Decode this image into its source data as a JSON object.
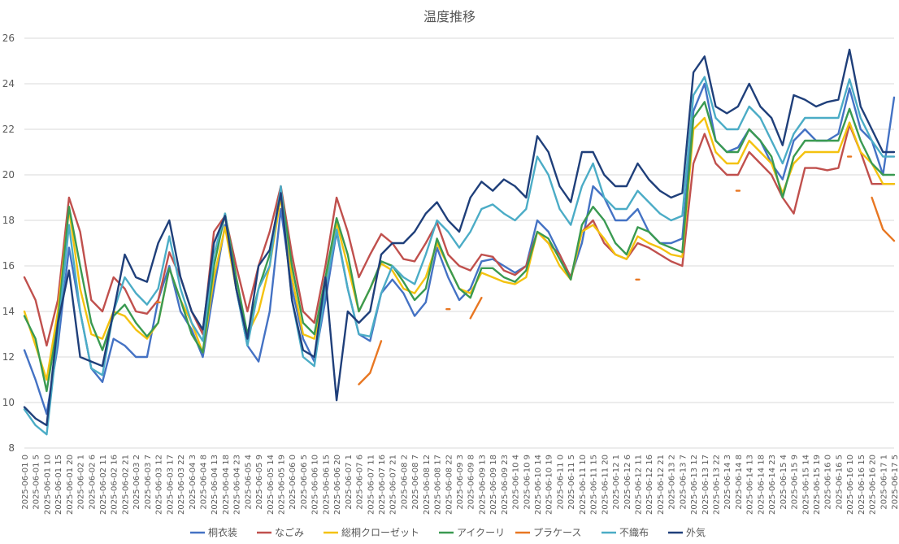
{
  "chart_data": {
    "type": "line",
    "title": "温度推移",
    "xlabel": "",
    "ylabel": "",
    "ylim": [
      8,
      26
    ],
    "yticks": [
      8,
      10,
      12,
      14,
      16,
      18,
      20,
      22,
      24,
      26
    ],
    "grid": true,
    "legend_position": "bottom",
    "x": [
      "2025-06-01 0",
      "2025-06-01 5",
      "2025-06-01 10",
      "2025-06-01 15",
      "2025-06-01 20",
      "2025-06-02 1",
      "2025-06-02 6",
      "2025-06-02 11",
      "2025-06-02 16",
      "2025-06-02 21",
      "2025-06-03 2",
      "2025-06-03 7",
      "2025-06-03 12",
      "2025-06-03 17",
      "2025-06-03 22",
      "2025-06-04 3",
      "2025-06-04 8",
      "2025-06-04 13",
      "2025-06-04 18",
      "2025-06-04 23",
      "2025-06-05 4",
      "2025-06-05 9",
      "2025-06-05 14",
      "2025-06-05 19",
      "2025-06-06 0",
      "2025-06-06 5",
      "2025-06-06 10",
      "2025-06-06 15",
      "2025-06-06 20",
      "2025-06-07 1",
      "2025-06-07 6",
      "2025-06-07 11",
      "2025-06-07 16",
      "2025-06-07 21",
      "2025-06-08 2",
      "2025-06-08 7",
      "2025-06-08 12",
      "2025-06-08 17",
      "2025-06-08 22",
      "2025-06-09 3",
      "2025-06-09 8",
      "2025-06-09 13",
      "2025-06-09 18",
      "2025-06-09 23",
      "2025-06-10 4",
      "2025-06-10 9",
      "2025-06-10 14",
      "2025-06-10 19",
      "2025-06-11 0",
      "2025-06-11 5",
      "2025-06-11 10",
      "2025-06-11 15",
      "2025-06-11 20",
      "2025-06-12 1",
      "2025-06-12 6",
      "2025-06-12 11",
      "2025-06-12 16",
      "2025-06-12 21",
      "2025-06-13 2",
      "2025-06-13 7",
      "2025-06-13 12",
      "2025-06-13 17",
      "2025-06-13 22",
      "2025-06-14 3",
      "2025-06-14 8",
      "2025-06-14 13",
      "2025-06-14 18",
      "2025-06-14 23",
      "2025-06-15 4",
      "2025-06-15 9",
      "2025-06-15 14",
      "2025-06-15 19",
      "2025-06-16 0",
      "2025-06-16 5",
      "2025-06-16 10",
      "2025-06-16 15",
      "2025-06-16 20",
      "2025-06-17 1",
      "2025-06-17 5"
    ],
    "series": [
      {
        "name": "桐衣装",
        "color": "#4472C4",
        "values": [
          12.3,
          11.0,
          9.5,
          12.5,
          16.8,
          14.0,
          11.5,
          10.9,
          12.8,
          12.5,
          12.0,
          12.0,
          14.5,
          16.0,
          14.0,
          13.2,
          12.0,
          15.0,
          17.8,
          15.0,
          12.5,
          11.8,
          14.0,
          18.5,
          15.0,
          12.8,
          11.8,
          14.5,
          17.5,
          15.0,
          13.0,
          12.7,
          14.8,
          15.4,
          14.8,
          13.8,
          14.4,
          16.8,
          15.5,
          14.5,
          15.0,
          16.2,
          16.3,
          16.0,
          15.7,
          16.0,
          18.0,
          17.5,
          16.5,
          15.5,
          17.0,
          19.5,
          19.0,
          18.0,
          18.0,
          18.5,
          17.5,
          17.0,
          17.0,
          17.2,
          22.8,
          24.0,
          21.5,
          21.0,
          21.2,
          22.0,
          21.5,
          20.5,
          19.8,
          21.5,
          22.0,
          21.5,
          21.5,
          21.8,
          23.8,
          22.0,
          21.5,
          20.0,
          23.4
        ]
      },
      {
        "name": "なごみ",
        "color": "#C0504D",
        "values": [
          15.5,
          14.5,
          12.5,
          14.5,
          19.0,
          17.5,
          14.5,
          14.0,
          15.5,
          15.0,
          14.0,
          13.9,
          14.5,
          16.6,
          15.5,
          14.0,
          13.0,
          17.5,
          18.2,
          16.0,
          14.0,
          16.0,
          17.5,
          19.5,
          16.5,
          14.0,
          13.5,
          16.0,
          19.0,
          17.5,
          15.5,
          16.5,
          17.4,
          17.0,
          16.3,
          16.2,
          17.0,
          17.9,
          16.5,
          16.0,
          15.8,
          16.5,
          16.4,
          15.8,
          15.6,
          16.0,
          17.5,
          17.0,
          16.5,
          15.5,
          17.5,
          18.0,
          17.0,
          16.5,
          16.3,
          17.0,
          16.8,
          16.5,
          16.2,
          16.0,
          20.5,
          21.8,
          20.5,
          20.0,
          20.0,
          21.0,
          20.5,
          20.0,
          19.0,
          18.3,
          20.3,
          20.3,
          20.2,
          20.3,
          22.2,
          21.0,
          19.6,
          19.6,
          19.6
        ]
      },
      {
        "name": "総桐クローゼット",
        "color": "#F4C20F",
        "values": [
          14.0,
          12.5,
          11.0,
          14.0,
          18.5,
          15.0,
          13.0,
          12.8,
          14.0,
          13.8,
          13.2,
          12.8,
          13.5,
          15.9,
          14.5,
          13.5,
          12.2,
          15.5,
          17.7,
          15.0,
          13.0,
          14.0,
          16.0,
          19.0,
          15.5,
          13.0,
          12.8,
          15.0,
          17.9,
          16.0,
          14.0,
          15.0,
          16.1,
          15.8,
          15.0,
          14.8,
          15.5,
          17.0,
          16.0,
          15.0,
          14.8,
          15.7,
          15.5,
          15.3,
          15.2,
          15.5,
          17.5,
          17.0,
          16.0,
          15.4,
          17.5,
          17.8,
          17.2,
          16.5,
          16.3,
          17.3,
          17.0,
          16.8,
          16.5,
          16.4,
          22.0,
          22.5,
          21.0,
          20.5,
          20.5,
          21.5,
          21.0,
          20.5,
          19.2,
          20.5,
          21.0,
          21.0,
          21.0,
          21.0,
          22.3,
          21.0,
          20.5,
          19.6,
          19.6
        ]
      },
      {
        "name": "アイクーリ",
        "color": "#3A9A51",
        "values": [
          13.8,
          12.8,
          10.5,
          13.5,
          18.6,
          16.0,
          13.5,
          12.3,
          13.8,
          14.3,
          13.5,
          12.9,
          13.5,
          15.9,
          14.5,
          13.0,
          12.2,
          16.0,
          18.3,
          15.5,
          13.0,
          15.0,
          16.5,
          19.4,
          16.0,
          13.5,
          13.0,
          15.5,
          18.1,
          16.5,
          14.0,
          15.0,
          16.2,
          16.0,
          15.3,
          14.5,
          15.0,
          17.2,
          16.0,
          15.0,
          14.6,
          15.9,
          15.9,
          15.5,
          15.3,
          15.8,
          17.5,
          17.2,
          16.3,
          15.4,
          17.8,
          18.6,
          18.0,
          17.0,
          16.5,
          17.7,
          17.5,
          17.0,
          16.8,
          16.6,
          22.5,
          23.2,
          21.5,
          21.0,
          21.0,
          22.0,
          21.5,
          20.8,
          19.0,
          20.8,
          21.5,
          21.5,
          21.5,
          21.5,
          22.9,
          21.5,
          20.5,
          20.0,
          20.0
        ]
      },
      {
        "name": "プラケース",
        "color": "#E87722",
        "values": [
          null,
          null,
          null,
          null,
          null,
          null,
          null,
          null,
          null,
          null,
          null,
          null,
          14.4,
          null,
          null,
          null,
          null,
          null,
          null,
          null,
          null,
          null,
          null,
          null,
          null,
          null,
          null,
          null,
          null,
          null,
          10.8,
          11.3,
          12.7,
          null,
          null,
          null,
          null,
          null,
          14.1,
          null,
          13.7,
          14.6,
          null,
          null,
          null,
          null,
          null,
          null,
          null,
          null,
          null,
          null,
          null,
          null,
          null,
          15.4,
          null,
          null,
          null,
          null,
          null,
          null,
          null,
          null,
          19.3,
          null,
          null,
          null,
          null,
          null,
          null,
          null,
          null,
          null,
          20.8,
          null,
          19.0,
          17.6,
          17.1
        ]
      },
      {
        "name": "不織布",
        "color": "#4BACC6",
        "values": [
          9.7,
          9.0,
          8.6,
          13.0,
          17.8,
          14.0,
          11.5,
          11.2,
          14.0,
          15.5,
          14.8,
          14.3,
          15.0,
          17.3,
          15.0,
          13.5,
          12.7,
          16.5,
          18.3,
          15.0,
          12.5,
          15.0,
          16.0,
          19.5,
          14.5,
          12.0,
          11.6,
          15.0,
          17.6,
          15.0,
          13.0,
          12.9,
          14.8,
          16.0,
          15.5,
          15.2,
          16.5,
          18.0,
          17.5,
          16.8,
          17.5,
          18.5,
          18.7,
          18.3,
          18.0,
          18.5,
          20.8,
          20.0,
          18.5,
          17.8,
          19.5,
          20.5,
          19.0,
          18.5,
          18.5,
          19.3,
          18.8,
          18.3,
          18.0,
          18.2,
          23.5,
          24.3,
          22.5,
          22.0,
          22.0,
          23.0,
          22.5,
          21.5,
          20.5,
          21.8,
          22.5,
          22.5,
          22.5,
          22.5,
          24.2,
          22.5,
          21.5,
          20.8,
          20.8
        ]
      },
      {
        "name": "外気",
        "color": "#1F3F7A",
        "values": [
          9.8,
          9.3,
          9.0,
          13.5,
          15.8,
          12.0,
          11.8,
          11.6,
          14.0,
          16.5,
          15.5,
          15.3,
          17.0,
          18.0,
          15.5,
          14.0,
          13.2,
          17.0,
          18.2,
          15.0,
          12.8,
          16.0,
          16.7,
          19.2,
          14.5,
          12.3,
          12.0,
          15.5,
          10.1,
          14.0,
          13.5,
          14.0,
          16.5,
          17.0,
          17.0,
          17.5,
          18.3,
          18.8,
          18.0,
          17.5,
          19.0,
          19.7,
          19.3,
          19.8,
          19.5,
          19.0,
          21.7,
          21.0,
          19.5,
          18.8,
          21.0,
          21.0,
          20.0,
          19.5,
          19.5,
          20.5,
          19.8,
          19.3,
          19.0,
          19.2,
          24.5,
          25.2,
          23.0,
          22.7,
          23.0,
          24.0,
          23.0,
          22.5,
          21.3,
          23.5,
          23.3,
          23.0,
          23.2,
          23.3,
          25.5,
          23.0,
          22.0,
          21.0,
          21.0
        ]
      }
    ]
  }
}
